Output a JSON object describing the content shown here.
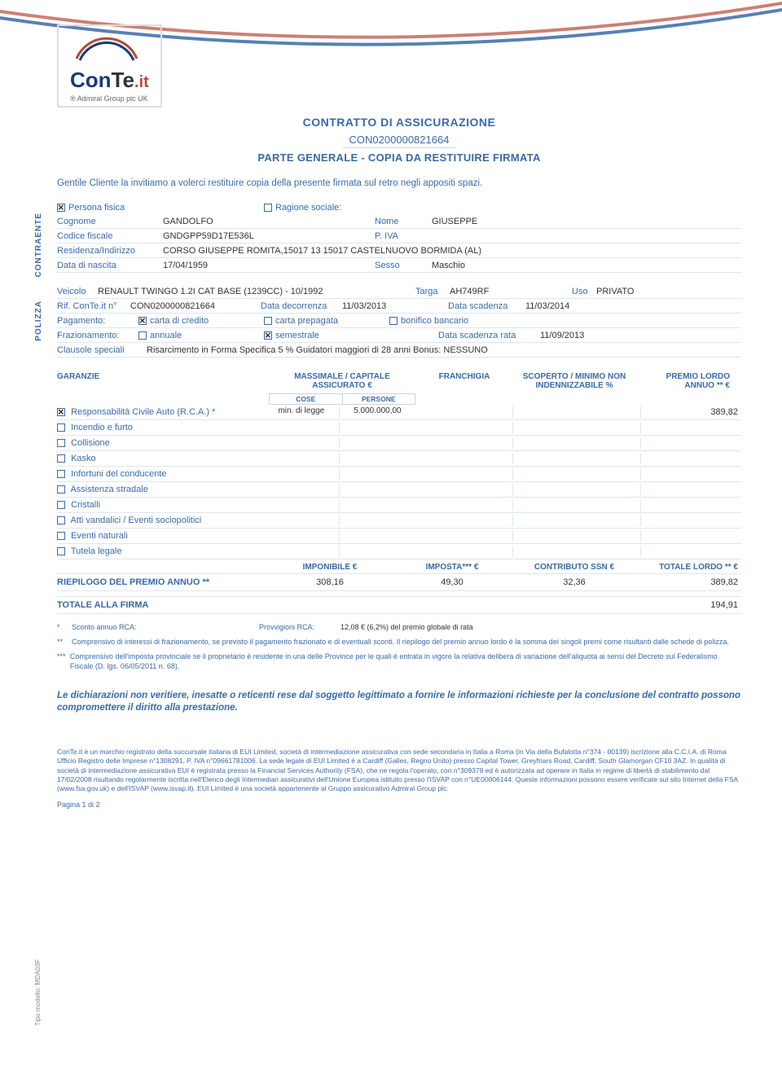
{
  "logo": {
    "brand": "ConTe",
    "suffix": ".it",
    "tagline": "® Admiral Group plc UK"
  },
  "title": {
    "main": "CONTRATTO DI ASSICURAZIONE",
    "number": "CON0200000821664",
    "sub": "PARTE GENERALE - COPIA DA RESTITUIRE FIRMATA"
  },
  "intro": "Gentile Cliente la invitiamo a volerci restituire copia della presente firmata sul retro negli appositi spazi.",
  "sections": {
    "contraente": "CONTRAENTE",
    "polizza": "POLIZZA"
  },
  "contraente": {
    "persona_fisica_lbl": "Persona fisica",
    "ragione_sociale_lbl": "Ragione sociale:",
    "cognome_lbl": "Cognome",
    "cognome": "GANDOLFO",
    "nome_lbl": "Nome",
    "nome": "GIUSEPPE",
    "cf_lbl": "Codice fiscale",
    "cf": "GNDGPP59D17E536L",
    "piva_lbl": "P. IVA",
    "res_lbl": "Residenza/Indirizzo",
    "res": "CORSO GIUSEPPE ROMITA,15017 13 15017 CASTELNUOVO BORMIDA (AL)",
    "dob_lbl": "Data di nascita",
    "dob": "17/04/1959",
    "sesso_lbl": "Sesso",
    "sesso": "Maschio"
  },
  "polizza": {
    "veicolo_lbl": "Veicolo",
    "veicolo": "RENAULT TWINGO 1.2I CAT BASE (1239CC) - 10/1992",
    "targa_lbl": "Targa",
    "targa": "AH749RF",
    "uso_lbl": "Uso",
    "uso": "PRIVATO",
    "rif_lbl": "Rif. ConTe.it n°",
    "rif": "CON0200000821664",
    "decorr_lbl": "Data decorrenza",
    "decorr": "11/03/2013",
    "scad_lbl": "Data scadenza",
    "scad": "11/03/2014",
    "pag_lbl": "Pagamento:",
    "pag_cc": "carta di credito",
    "pag_cp": "carta prepagata",
    "pag_bb": "bonifico bancario",
    "fraz_lbl": "Frazionamento:",
    "fraz_ann": "annuale",
    "fraz_sem": "semestrale",
    "rate_lbl": "Data scadenza rata",
    "rate": "11/09/2013",
    "clausole_lbl": "Clausole speciali",
    "clausole": "Risarcimento in Forma Specifica 5 % Guidatori maggiori di 28 anni Bonus: NESSUNO"
  },
  "garanzie_hdr": {
    "gar": "GARANZIE",
    "mass": "MASSIMALE / CAPITALE ASSICURATO €",
    "cose": "COSE",
    "persone": "PERSONE",
    "fran": "FRANCHIGIA",
    "scop": "SCOPERTO / MINIMO NON INDENNIZZABILE %",
    "prem": "PREMIO LORDO ANNUO ** €"
  },
  "garanzie": [
    {
      "checked": true,
      "name": "Responsabilità Civile Auto (R.C.A.) *",
      "cose": "min. di legge",
      "pers": "5.000.000,00",
      "fran": "",
      "scop": "",
      "prem": "389,82"
    },
    {
      "checked": false,
      "name": "Incendio e furto",
      "cose": "",
      "pers": "",
      "fran": "",
      "scop": "",
      "prem": ""
    },
    {
      "checked": false,
      "name": "Collisione",
      "cose": "",
      "pers": "",
      "fran": "",
      "scop": "",
      "prem": ""
    },
    {
      "checked": false,
      "name": "Kasko",
      "cose": "",
      "pers": "",
      "fran": "",
      "scop": "",
      "prem": ""
    },
    {
      "checked": false,
      "name": "Infortuni del conducente",
      "cose": "",
      "pers": "",
      "fran": "",
      "scop": "",
      "prem": ""
    },
    {
      "checked": false,
      "name": "Assistenza stradale",
      "cose": "",
      "pers": "",
      "fran": "",
      "scop": "",
      "prem": ""
    },
    {
      "checked": false,
      "name": "Cristalli",
      "cose": "",
      "pers": "",
      "fran": "",
      "scop": "",
      "prem": ""
    },
    {
      "checked": false,
      "name": "Atti vandalici / Eventi sociopolitici",
      "cose": "",
      "pers": "",
      "fran": "",
      "scop": "",
      "prem": ""
    },
    {
      "checked": false,
      "name": "Eventi naturali",
      "cose": "",
      "pers": "",
      "fran": "",
      "scop": "",
      "prem": ""
    },
    {
      "checked": false,
      "name": "Tutela legale",
      "cose": "",
      "pers": "",
      "fran": "",
      "scop": "",
      "prem": ""
    }
  ],
  "totali_hdr": {
    "imp": "IMPONIBILE €",
    "imposta": "IMPOSTA*** €",
    "ssn": "CONTRIBUTO SSN €",
    "tot": "TOTALE LORDO ** €"
  },
  "riepilogo": {
    "lbl": "RIEPILOGO DEL PREMIO ANNUO **",
    "imp": "308,16",
    "imposta": "49,30",
    "ssn": "32,36",
    "tot": "389,82"
  },
  "totale_firma": {
    "lbl": "TOTALE ALLA FIRMA",
    "val": "194,91"
  },
  "notes": {
    "n1_star": "*",
    "n1a": "Sconto annuo RCA:",
    "n1b": "Provvigioni RCA:",
    "n1c": "12,08 € (6,2%) del premio globale di rata",
    "n2_star": "**",
    "n2": "Comprensivo di interessi di frazionamento, se previsto il pagamento frazionato e di eventuali sconti. Il riepilogo del premio annuo lordo è la somma dei singoli premi come risultanti dalle schede di polizza.",
    "n3_star": "***",
    "n3": "Comprensivo dell'imposta provinciale se il proprietario è residente in una delle Province per le quali è entrata in vigore la relativa delibera di variazione dell'aliquota ai sensi del Decreto sul Federalismo Fiscale (D. lgs. 06/05/2011 n. 68)."
  },
  "declaration": "Le dichiarazioni non veritiere, inesatte o reticenti rese dal soggetto legittimato a fornire le informazioni richieste per la conclusione del contratto possono compromettere il diritto alla prestazione.",
  "footer": "ConTe.it è un marchio registrato della succursale italiana di EUI Limited, società di intermediazione assicurativa con sede secondaria in Italia a Roma (in Via della Bufalotta n°374 - 00139) iscrizione alla C.C.I.A. di Roma Ufficio Registro delle Imprese n°1308291, P. IVA n°09661781006. La sede legale di EUI Limited è a Cardiff (Galles, Regno Unito) presso Capital Tower, Greyfriars Road, Cardiff, South Glamorgan CF10 3AZ. In qualità di società di intermediazione assicurativa EUI è registrata presso la Financial Services Authority (FSA), che ne regola l'operato, con n°309378 ed è autorizzata ad operare in Italia in regime di libertà di stabilimento dal 17/02/2008 risultando regolarmente iscritta nell'Elenco degli Intermediari assicurativi dell'Unione Europea istituito presso l'ISVAP con n°UE00006144. Queste informazioni possono essere verificate sul sito Internet della FSA (www.fsa.gov.uk) e dell'ISVAP (www.isvap.it). EUI Limited è una società appartenente al Gruppo assicurativo Admiral Group plc.",
  "page": "Pagina 1 di 2",
  "model": "Tipo modello: MDA03F",
  "colors": {
    "primary": "#3a6aa8",
    "line": "#dfe6f0",
    "text": "#333333"
  }
}
